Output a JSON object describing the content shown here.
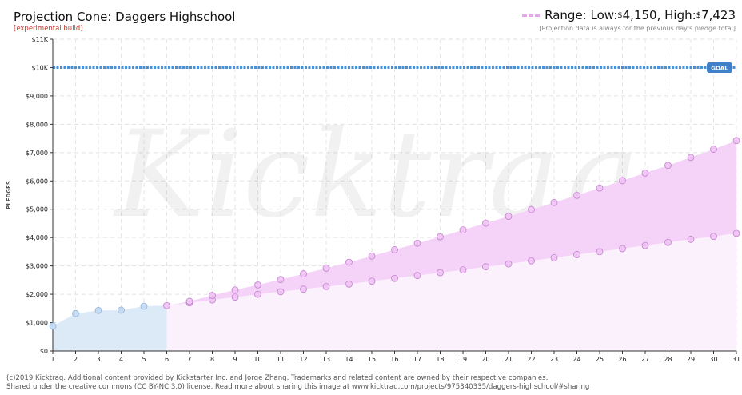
{
  "header": {
    "title": "Projection Cone: Daggers Highschool",
    "subtitle": "[experimental build]",
    "range_prefix": "Range: Low: ",
    "low_currency": "$",
    "low_value": "4,150",
    "high_sep": ", High: ",
    "high_currency": "$",
    "high_value": "7,423",
    "note": "[Projection data is always for the previous day's pledge total]"
  },
  "footer": {
    "line1": "(c)2019 Kicktraq. Additional content provided by Kickstarter Inc. and Jorge Zhang. Trademarks and related content are owned by their respective companies.",
    "line2": "Shared under the creative commons (CC BY-NC 3.0) license. Read more about sharing this image at www.kicktraq.com/projects/975340335/daggers-highschool/#sharing"
  },
  "colors": {
    "actual_fill": "#dce9f7",
    "actual_marker": "#c7dcf3",
    "actual_stroke": "#8fb5dd",
    "cone_fill": "#f5d3f8",
    "below_fill": "#fbf1fc",
    "proj_marker": "#f0c6f5",
    "proj_stroke": "#c481cf",
    "goal_line": "#4a90d9",
    "goal_badge": "#3f80c9"
  },
  "chart_data": {
    "type": "line",
    "ylabel": "PLEDGES",
    "ylim": [
      0,
      11000
    ],
    "ytick_values": [
      0,
      1000,
      2000,
      3000,
      4000,
      5000,
      6000,
      7000,
      8000,
      9000,
      10000,
      11000
    ],
    "ytick_labels": [
      "$0",
      "$1,000",
      "$2,000",
      "$3,000",
      "$4,000",
      "$5,000",
      "$6,000",
      "$7,000",
      "$8,000",
      "$9,000",
      "$10K",
      "$11K"
    ],
    "x": [
      1,
      2,
      3,
      4,
      5,
      6,
      7,
      8,
      9,
      10,
      11,
      12,
      13,
      14,
      15,
      16,
      17,
      18,
      19,
      20,
      21,
      22,
      23,
      24,
      25,
      26,
      27,
      28,
      29,
      30,
      31
    ],
    "xtick_labels": [
      "1",
      "2",
      "3",
      "4",
      "5",
      "6",
      "7",
      "8",
      "9",
      "10",
      "11",
      "12",
      "13",
      "14",
      "15",
      "16",
      "17",
      "18",
      "19",
      "20",
      "21",
      "22",
      "23",
      "24",
      "25",
      "26",
      "27",
      "28",
      "29",
      "30",
      "31"
    ],
    "goal": {
      "value": 10000,
      "label": "GOAL"
    },
    "series": [
      {
        "key": "actual",
        "x": [
          1,
          2,
          3,
          4,
          5,
          6
        ],
        "values": [
          880,
          1320,
          1430,
          1440,
          1580,
          1600
        ]
      },
      {
        "key": "projected_high",
        "x": [
          6,
          7,
          8,
          9,
          10,
          11,
          12,
          13,
          14,
          15,
          16,
          17,
          18,
          19,
          20,
          21,
          22,
          23,
          24,
          25,
          26,
          27,
          28,
          29,
          30,
          31
        ],
        "values": [
          1600,
          1750,
          1960,
          2150,
          2330,
          2520,
          2720,
          2920,
          3130,
          3350,
          3570,
          3800,
          4030,
          4270,
          4510,
          4750,
          4990,
          5240,
          5490,
          5750,
          6010,
          6280,
          6550,
          6830,
          7120,
          7423
        ]
      },
      {
        "key": "projected_low",
        "x": [
          6,
          7,
          8,
          9,
          10,
          11,
          12,
          13,
          14,
          15,
          16,
          17,
          18,
          19,
          20,
          21,
          22,
          23,
          24,
          25,
          26,
          27,
          28,
          29,
          30,
          31
        ],
        "values": [
          1600,
          1700,
          1800,
          1900,
          2000,
          2090,
          2180,
          2270,
          2360,
          2460,
          2560,
          2660,
          2760,
          2860,
          2970,
          3070,
          3180,
          3290,
          3400,
          3500,
          3610,
          3720,
          3830,
          3940,
          4040,
          4150
        ]
      }
    ]
  }
}
